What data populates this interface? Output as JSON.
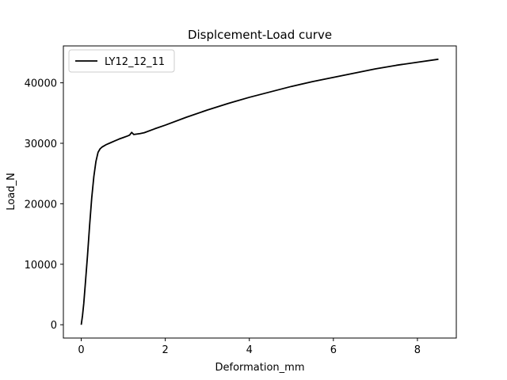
{
  "chart_data": {
    "type": "line",
    "title": "Displcement-Load curve",
    "xlabel": "Deformation_mm",
    "ylabel": "Load_N",
    "xlim": [
      -0.425,
      8.925
    ],
    "ylim": [
      -2200,
      46100
    ],
    "xticks": [
      0,
      2,
      4,
      6,
      8
    ],
    "xtick_labels": [
      "0",
      "2",
      "4",
      "6",
      "8"
    ],
    "yticks": [
      0,
      10000,
      20000,
      30000,
      40000
    ],
    "ytick_labels": [
      "0",
      "10000",
      "20000",
      "30000",
      "40000"
    ],
    "grid": false,
    "legend_position": "upper-left",
    "series": [
      {
        "name": "LY12_12_11",
        "color": "#000000",
        "x": [
          0.0,
          0.03,
          0.06,
          0.1,
          0.15,
          0.2,
          0.25,
          0.3,
          0.35,
          0.4,
          0.45,
          0.5,
          0.55,
          0.6,
          0.7,
          0.8,
          0.9,
          1.0,
          1.1,
          1.15,
          1.2,
          1.25,
          1.3,
          1.4,
          1.5,
          1.75,
          2.0,
          2.5,
          3.0,
          3.5,
          4.0,
          4.5,
          5.0,
          5.5,
          6.0,
          6.5,
          7.0,
          7.5,
          8.0,
          8.5
        ],
        "y": [
          0,
          1500,
          3500,
          7000,
          11500,
          16500,
          21000,
          24500,
          27000,
          28500,
          29100,
          29400,
          29600,
          29800,
          30100,
          30400,
          30700,
          30950,
          31200,
          31350,
          31800,
          31450,
          31500,
          31600,
          31750,
          32400,
          33000,
          34300,
          35500,
          36600,
          37600,
          38500,
          39400,
          40200,
          40900,
          41600,
          42300,
          42900,
          43400,
          43900
        ]
      }
    ]
  }
}
